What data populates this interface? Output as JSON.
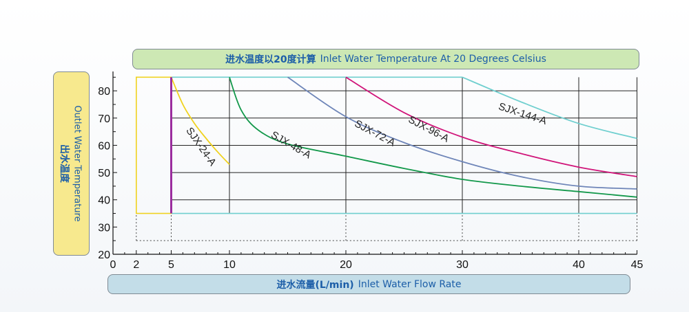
{
  "chart_data": {
    "type": "line",
    "title_zh": "进水温度以20度计算",
    "title_en": "Inlet Water Temperature At 20 Degrees Celsius",
    "xlabel_zh": "进水流量(L/min)",
    "xlabel_en": "Inlet Water Flow Rate",
    "ylabel_zh": "出水温度",
    "ylabel_en": "Outlet Water Temperature",
    "xlim": [
      0,
      45
    ],
    "ylim": [
      20,
      85
    ],
    "x_ticks": [
      "0",
      "2",
      "5",
      "10",
      "20",
      "30",
      "40",
      "45"
    ],
    "y_ticks": [
      "20",
      "30",
      "40",
      "50",
      "60",
      "70",
      "80"
    ],
    "gridlines_x": [
      10,
      20,
      30,
      40
    ],
    "gridlines_y": [
      40,
      50,
      60,
      70,
      80
    ],
    "series": [
      {
        "name": "SJX-24-A",
        "color": "#f0d21e",
        "x": [
          5,
          6,
          7,
          8,
          9,
          10
        ],
        "y": [
          85,
          75,
          68,
          62.5,
          57.5,
          53
        ]
      },
      {
        "name": "SJX-48-A",
        "color": "#12984a",
        "x": [
          10,
          11,
          12.5,
          15,
          20,
          25,
          30,
          35,
          40,
          45
        ],
        "y": [
          85,
          73,
          65.5,
          60.5,
          56,
          51.5,
          47.5,
          45,
          43,
          41
        ]
      },
      {
        "name": "SJX-72-A",
        "color": "#6e85b8",
        "x": [
          15,
          20,
          25,
          30,
          35,
          40,
          45
        ],
        "y": [
          85,
          70.5,
          61,
          54,
          48.5,
          45,
          44
        ]
      },
      {
        "name": "SJX-96-A",
        "color": "#d01479",
        "x": [
          20,
          25,
          30,
          35,
          40,
          45
        ],
        "y": [
          85,
          72,
          63,
          57,
          52,
          48.5
        ]
      },
      {
        "name": "SJX-144-A",
        "color": "#6fcfcf",
        "x": [
          30,
          35,
          40,
          45
        ],
        "y": [
          85,
          76,
          68,
          62.5
        ]
      }
    ],
    "yellow_box": {
      "x": [
        2,
        5
      ],
      "y": [
        35,
        85
      ],
      "color": "#f0d21e"
    },
    "purple_line": {
      "x": 5,
      "y": [
        35,
        85
      ],
      "color": "#9b2d9e"
    },
    "cyan_frame": {
      "x": [
        5,
        30
      ],
      "y_top": 85,
      "bottom_line_y": 35,
      "color": "#6fcfcf"
    },
    "dotted_box": {
      "x": [
        2,
        45
      ],
      "y": [
        25,
        35
      ]
    }
  }
}
